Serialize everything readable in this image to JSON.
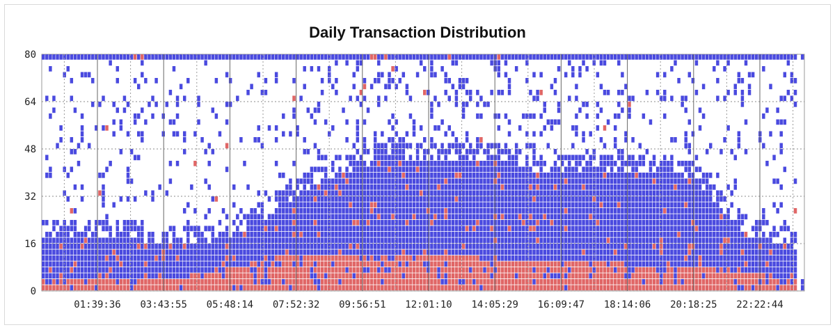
{
  "chart_data": {
    "type": "heatmap",
    "title": "Daily Transaction Distribution",
    "xlabel": "",
    "ylabel": "",
    "ylim": [
      0,
      80
    ],
    "y_ticks": [
      "0",
      "16",
      "32",
      "48",
      "64",
      "80"
    ],
    "x_ticks": [
      "01:39:36",
      "03:43:55",
      "05:48:14",
      "07:52:32",
      "09:56:51",
      "12:01:10",
      "14:05:29",
      "16:09:47",
      "18:14:06",
      "20:18:25",
      "22:22:44"
    ],
    "x_range": [
      "00:00:00",
      "23:59:59"
    ],
    "grid": true,
    "colors": {
      "primary": "#4a4adf",
      "highlight": "#e06666",
      "background": "#ffffff"
    },
    "band_profile": {
      "solid_height": [
        20,
        20,
        20,
        19,
        18,
        18,
        17,
        18,
        20,
        25,
        30,
        36,
        40,
        43,
        45,
        46,
        46,
        46,
        45,
        44,
        42,
        42,
        42,
        42,
        42,
        41,
        40,
        38,
        28,
        20,
        18,
        16
      ],
      "red_height": [
        4,
        4,
        3,
        3,
        3,
        4,
        4,
        5,
        7,
        9,
        11,
        11,
        11,
        11,
        11,
        11,
        11,
        11,
        10,
        10,
        10,
        9,
        9,
        9,
        8,
        8,
        7,
        7,
        6,
        5,
        4,
        3
      ]
    }
  }
}
